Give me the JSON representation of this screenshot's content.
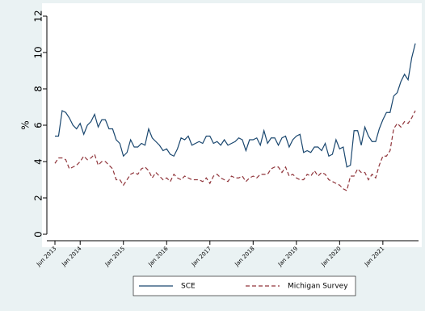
{
  "chart_data": {
    "type": "line",
    "ylabel": "%",
    "categories": [
      "Jun 2013",
      null,
      null,
      null,
      null,
      null,
      null,
      "Jan 2014",
      null,
      null,
      null,
      null,
      null,
      null,
      null,
      null,
      null,
      null,
      null,
      "Jan 2015",
      null,
      null,
      null,
      null,
      null,
      null,
      null,
      null,
      null,
      null,
      null,
      "Jan 2016",
      null,
      null,
      null,
      null,
      null,
      null,
      null,
      null,
      null,
      null,
      null,
      "Jan 2017",
      null,
      null,
      null,
      null,
      null,
      null,
      null,
      null,
      null,
      null,
      null,
      "Jan 2018",
      null,
      null,
      null,
      null,
      null,
      null,
      null,
      null,
      null,
      null,
      null,
      "Jan 2019",
      null,
      null,
      null,
      null,
      null,
      null,
      null,
      null,
      null,
      null,
      null,
      "Jan 2020",
      null,
      null,
      null,
      null,
      null,
      null,
      null,
      null,
      null,
      null,
      null,
      "Jan 2021",
      null,
      null,
      null,
      null,
      null,
      null,
      null,
      null,
      null
    ],
    "series": [
      {
        "name": "SCE",
        "color": "#1a476f",
        "dash": false,
        "values": [
          5.4,
          5.4,
          6.8,
          6.7,
          6.4,
          6.0,
          5.8,
          6.1,
          5.5,
          6.0,
          6.2,
          6.6,
          5.9,
          6.3,
          6.3,
          5.8,
          5.8,
          5.2,
          5.0,
          4.3,
          4.5,
          5.2,
          4.8,
          4.8,
          5.0,
          4.9,
          5.8,
          5.3,
          5.1,
          4.9,
          4.6,
          4.7,
          4.4,
          4.3,
          4.7,
          5.3,
          5.2,
          5.4,
          4.9,
          5.0,
          5.1,
          5.0,
          5.4,
          5.4,
          5.0,
          5.1,
          4.9,
          5.2,
          4.9,
          5.0,
          5.1,
          5.3,
          5.2,
          4.6,
          5.2,
          5.2,
          5.3,
          4.9,
          5.7,
          5.0,
          5.3,
          5.3,
          4.9,
          5.3,
          5.4,
          4.8,
          5.2,
          5.4,
          5.5,
          4.5,
          4.6,
          4.5,
          4.8,
          4.8,
          4.6,
          5.0,
          4.3,
          4.4,
          5.2,
          4.7,
          4.8,
          3.7,
          3.8,
          5.7,
          5.7,
          4.9,
          5.9,
          5.4,
          5.1,
          5.1,
          5.8,
          6.3,
          6.7,
          6.7,
          7.6,
          7.8,
          8.4,
          8.8,
          8.5,
          9.7,
          10.5
        ]
      },
      {
        "name": "Michigan Survey",
        "color": "#90353b",
        "dash": true,
        "values": [
          3.9,
          4.2,
          4.2,
          4.1,
          3.6,
          3.7,
          3.8,
          4.0,
          4.3,
          4.1,
          4.2,
          4.4,
          3.8,
          4.0,
          4.0,
          3.8,
          3.6,
          3.0,
          3.0,
          2.7,
          3.0,
          3.3,
          3.4,
          3.3,
          3.6,
          3.7,
          3.5,
          3.1,
          3.4,
          3.2,
          3.0,
          3.1,
          2.9,
          3.3,
          3.1,
          3.0,
          3.2,
          3.1,
          3.0,
          3.0,
          3.0,
          2.9,
          3.1,
          2.8,
          3.2,
          3.3,
          3.1,
          3.0,
          2.9,
          3.2,
          3.1,
          3.1,
          3.2,
          2.9,
          3.1,
          3.2,
          3.1,
          3.3,
          3.3,
          3.3,
          3.6,
          3.7,
          3.7,
          3.4,
          3.7,
          3.2,
          3.3,
          3.1,
          3.0,
          3.0,
          3.3,
          3.2,
          3.5,
          3.2,
          3.4,
          3.3,
          3.0,
          2.9,
          2.8,
          2.7,
          2.5,
          2.4,
          3.2,
          3.2,
          3.6,
          3.4,
          3.4,
          3.0,
          3.3,
          3.1,
          3.8,
          4.3,
          4.3,
          4.6,
          5.8,
          6.1,
          5.9,
          6.2,
          6.1,
          6.4,
          6.8
        ]
      }
    ],
    "ylim": [
      0,
      12
    ],
    "yticks": [
      0,
      2,
      4,
      6,
      8,
      10,
      12
    ],
    "grid": false,
    "legend": "bottom"
  }
}
